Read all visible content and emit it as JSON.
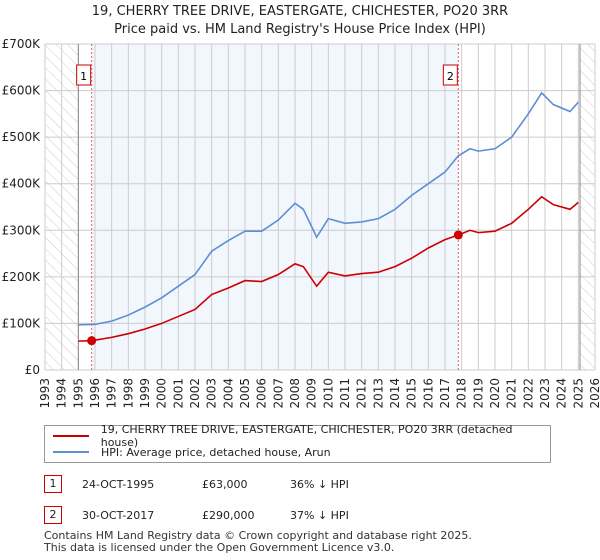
{
  "chart_data": {
    "type": "line",
    "title": "19, CHERRY TREE DRIVE, EASTERGATE, CHICHESTER, PO20 3RR",
    "subtitle": "Price paid vs. HM Land Registry's House Price Index (HPI)",
    "xlim": [
      1993,
      2026
    ],
    "ylim": [
      0,
      700000
    ],
    "yticks": [
      {
        "v": 0,
        "l": "£0"
      },
      {
        "v": 100000,
        "l": "£100K"
      },
      {
        "v": 200000,
        "l": "£200K"
      },
      {
        "v": 300000,
        "l": "£300K"
      },
      {
        "v": 400000,
        "l": "£400K"
      },
      {
        "v": 500000,
        "l": "£500K"
      },
      {
        "v": 600000,
        "l": "£600K"
      },
      {
        "v": 700000,
        "l": "£700K"
      }
    ],
    "xticks": [
      "1993",
      "1994",
      "1995",
      "1996",
      "1997",
      "1998",
      "1999",
      "2000",
      "2001",
      "2002",
      "2003",
      "2004",
      "2005",
      "2006",
      "2007",
      "2008",
      "2009",
      "2010",
      "2011",
      "2012",
      "2013",
      "2014",
      "2015",
      "2016",
      "2017",
      "2018",
      "2019",
      "2020",
      "2021",
      "2022",
      "2023",
      "2024",
      "2025",
      "2026"
    ],
    "series": [
      {
        "name": "19, CHERRY TREE DRIVE, EASTERGATE, CHICHESTER, PO20 3RR (detached house)",
        "color": "#cc0000",
        "x": [
          1995,
          1995.8,
          1997,
          1998,
          1999,
          2000,
          2001,
          2002,
          2003,
          2004,
          2005,
          2006,
          2007,
          2008,
          2008.5,
          2009.3,
          2010,
          2011,
          2012,
          2013,
          2014,
          2015,
          2016,
          2017,
          2017.8,
          2018.5,
          2019,
          2020,
          2021,
          2022,
          2022.8,
          2023.5,
          2024.5,
          2025
        ],
        "y": [
          62000,
          63000,
          70000,
          78000,
          88000,
          100000,
          115000,
          130000,
          162000,
          176000,
          192000,
          190000,
          205000,
          228000,
          222000,
          180000,
          210000,
          202000,
          207000,
          210000,
          222000,
          240000,
          262000,
          280000,
          290000,
          300000,
          295000,
          298000,
          315000,
          345000,
          372000,
          355000,
          345000,
          360000
        ]
      },
      {
        "name": "HPI: Average price, detached house, Arun",
        "color": "#5b8fd4",
        "x": [
          1995,
          1996,
          1997,
          1998,
          1999,
          2000,
          2001,
          2002,
          2003,
          2004,
          2005,
          2006,
          2007,
          2008,
          2008.5,
          2009.3,
          2010,
          2011,
          2012,
          2013,
          2014,
          2015,
          2016,
          2017,
          2017.8,
          2018.5,
          2019,
          2020,
          2021,
          2022,
          2022.8,
          2023.5,
          2024.5,
          2025
        ],
        "y": [
          97000,
          98000,
          105000,
          118000,
          135000,
          155000,
          180000,
          205000,
          255000,
          278000,
          298000,
          298000,
          322000,
          358000,
          345000,
          285000,
          325000,
          315000,
          318000,
          325000,
          345000,
          375000,
          400000,
          425000,
          460000,
          475000,
          470000,
          475000,
          500000,
          550000,
          595000,
          570000,
          555000,
          575000
        ]
      }
    ],
    "sales": [
      {
        "id": "1",
        "date": "24-OCT-1995",
        "price": "£63,000",
        "hpi": "36% ↓ HPI",
        "x": 1995.8,
        "y": 63000
      },
      {
        "id": "2",
        "date": "30-OCT-2017",
        "price": "£290,000",
        "hpi": "37% ↓ HPI",
        "x": 2017.8,
        "y": 290000
      }
    ],
    "footer1": "Contains HM Land Registry data © Crown copyright and database right 2025.",
    "footer2": "This data is licensed under the Open Government Licence v3.0."
  }
}
